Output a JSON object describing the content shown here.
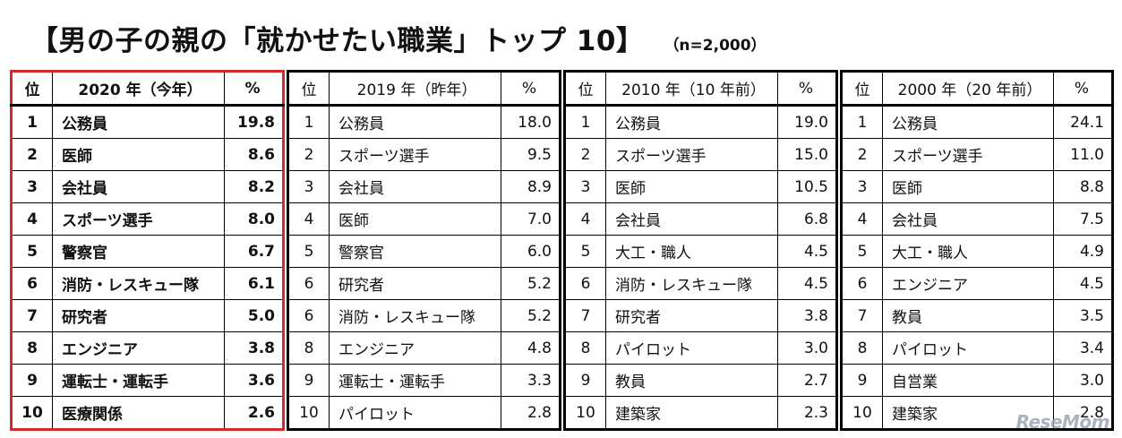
{
  "title": "【男の子の親の「就かせたい職業」トップ 10】",
  "sample_note": "（n=2,000）",
  "columns": {
    "rank": "位",
    "pct": "%"
  },
  "tables": [
    {
      "year_label": "2020 年（今年）",
      "rows": [
        {
          "rank": "1",
          "job": "公務員",
          "pct": "19.8"
        },
        {
          "rank": "2",
          "job": "医師",
          "pct": "8.6"
        },
        {
          "rank": "3",
          "job": "会社員",
          "pct": "8.2"
        },
        {
          "rank": "4",
          "job": "スポーツ選手",
          "pct": "8.0"
        },
        {
          "rank": "5",
          "job": "警察官",
          "pct": "6.7"
        },
        {
          "rank": "6",
          "job": "消防・レスキュー隊",
          "pct": "6.1"
        },
        {
          "rank": "7",
          "job": "研究者",
          "pct": "5.0"
        },
        {
          "rank": "8",
          "job": "エンジニア",
          "pct": "3.8"
        },
        {
          "rank": "9",
          "job": "運転士・運転手",
          "pct": "3.6"
        },
        {
          "rank": "10",
          "job": "医療関係",
          "pct": "2.6"
        }
      ]
    },
    {
      "year_label": "2019 年（昨年）",
      "rows": [
        {
          "rank": "1",
          "job": "公務員",
          "pct": "18.0"
        },
        {
          "rank": "2",
          "job": "スポーツ選手",
          "pct": "9.5"
        },
        {
          "rank": "3",
          "job": "会社員",
          "pct": "8.9"
        },
        {
          "rank": "4",
          "job": "医師",
          "pct": "7.0"
        },
        {
          "rank": "5",
          "job": "警察官",
          "pct": "6.0"
        },
        {
          "rank": "6",
          "job": "研究者",
          "pct": "5.2"
        },
        {
          "rank": "6",
          "job": "消防・レスキュー隊",
          "pct": "5.2"
        },
        {
          "rank": "8",
          "job": "エンジニア",
          "pct": "4.8"
        },
        {
          "rank": "9",
          "job": "運転士・運転手",
          "pct": "3.3"
        },
        {
          "rank": "10",
          "job": "パイロット",
          "pct": "2.8"
        }
      ]
    },
    {
      "year_label": "2010 年（10 年前）",
      "rows": [
        {
          "rank": "1",
          "job": "公務員",
          "pct": "19.0"
        },
        {
          "rank": "2",
          "job": "スポーツ選手",
          "pct": "15.0"
        },
        {
          "rank": "3",
          "job": "医師",
          "pct": "10.5"
        },
        {
          "rank": "4",
          "job": "会社員",
          "pct": "6.8"
        },
        {
          "rank": "5",
          "job": "大工・職人",
          "pct": "4.5"
        },
        {
          "rank": "6",
          "job": "消防・レスキュー隊",
          "pct": "4.5"
        },
        {
          "rank": "7",
          "job": "研究者",
          "pct": "3.8"
        },
        {
          "rank": "8",
          "job": "パイロット",
          "pct": "3.0"
        },
        {
          "rank": "9",
          "job": "教員",
          "pct": "2.7"
        },
        {
          "rank": "10",
          "job": "建築家",
          "pct": "2.3"
        }
      ]
    },
    {
      "year_label": "2000 年（20 年前）",
      "rows": [
        {
          "rank": "1",
          "job": "公務員",
          "pct": "24.1"
        },
        {
          "rank": "2",
          "job": "スポーツ選手",
          "pct": "11.0"
        },
        {
          "rank": "3",
          "job": "医師",
          "pct": "8.8"
        },
        {
          "rank": "4",
          "job": "会社員",
          "pct": "7.5"
        },
        {
          "rank": "5",
          "job": "大工・職人",
          "pct": "4.9"
        },
        {
          "rank": "6",
          "job": "エンジニア",
          "pct": "4.5"
        },
        {
          "rank": "7",
          "job": "教員",
          "pct": "3.5"
        },
        {
          "rank": "8",
          "job": "パイロット",
          "pct": "3.4"
        },
        {
          "rank": "9",
          "job": "自営業",
          "pct": "3.0"
        },
        {
          "rank": "10",
          "job": "建築家",
          "pct": "2.8"
        }
      ]
    }
  ],
  "watermark": "ReseMom",
  "colors": {
    "current_year_border": "#d42a2a",
    "border": "#000000",
    "text": "#111111"
  }
}
